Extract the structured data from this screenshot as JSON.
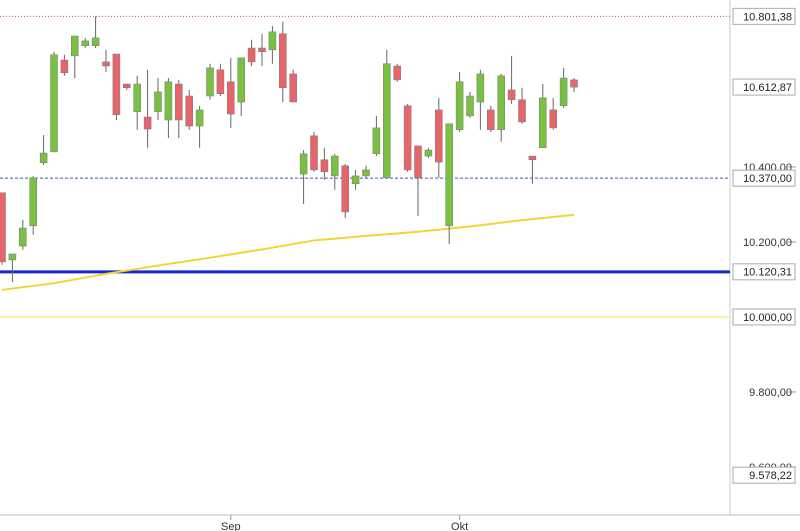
{
  "chart_data": {
    "type": "candlestick",
    "categories": [
      null,
      null,
      null,
      null,
      null,
      null,
      null,
      null,
      null,
      null,
      null,
      null,
      null,
      null,
      null,
      null,
      null,
      null,
      null,
      null,
      null,
      null,
      "Sep",
      null,
      null,
      null,
      null,
      null,
      null,
      null,
      null,
      null,
      null,
      null,
      null,
      null,
      null,
      null,
      null,
      null,
      null,
      null,
      null,
      null,
      "Okt",
      null,
      null,
      null,
      null,
      null,
      null,
      null,
      null,
      null,
      null,
      null
    ],
    "open": [
      10331,
      10152,
      10189,
      10243,
      10411,
      10440,
      10685,
      10696,
      10723,
      10723,
      10680,
      10701,
      10621,
      10547,
      10533,
      10547,
      10525,
      10621,
      10589,
      10509,
      10589,
      10659,
      10627,
      10573,
      10717,
      10717,
      10712,
      10755,
      10648,
      10381,
      10483,
      10419,
      10376,
      10403,
      10355,
      10376,
      10435,
      10371,
      10669,
      10563,
      10456,
      10429,
      10552,
      10243,
      10499,
      10536,
      10573,
      10552,
      10499,
      10605,
      10579,
      10429,
      10451,
      10552,
      10563,
      10632
    ],
    "high": [
      10331,
      10168,
      10259,
      10376,
      10485,
      10707,
      10699,
      10749,
      10744,
      10801.38,
      10712,
      10701,
      10621,
      10643,
      10659,
      10637,
      10637,
      10632,
      10605,
      10563,
      10675,
      10675,
      10691,
      10691,
      10739,
      10755,
      10776,
      10787,
      10659,
      10445,
      10493,
      10451,
      10435,
      10408,
      10392,
      10403,
      10536,
      10712,
      10675,
      10568,
      10456,
      10451,
      10584,
      10515,
      10653,
      10600,
      10659,
      10563,
      10648,
      10696,
      10611,
      10429,
      10621,
      10584,
      10664,
      10637
    ],
    "low": [
      10139,
      10093,
      10179,
      10219,
      10405,
      10440,
      10643,
      10637,
      10717,
      10717,
      10653,
      10525,
      10605,
      10499,
      10451,
      10525,
      10477,
      10477,
      10499,
      10451,
      10579,
      10589,
      10504,
      10536,
      10669,
      10669,
      10675,
      10573,
      10573,
      10301,
      10387,
      10365,
      10339,
      10264,
      10339,
      10371,
      10429,
      10371,
      10627,
      10387,
      10269,
      10424,
      10371,
      10195,
      10493,
      10531,
      10499,
      10493,
      10467,
      10568,
      10515,
      10355,
      10451,
      10499,
      10557,
      10600
    ],
    "close": [
      10147,
      10168,
      10237,
      10371,
      10437,
      10699,
      10651,
      10749,
      10736,
      10744,
      10669,
      10539,
      10611,
      10621,
      10501,
      10600,
      10627,
      10525,
      10509,
      10552,
      10664,
      10595,
      10541,
      10691,
      10680,
      10707,
      10760,
      10611,
      10573,
      10435,
      10392,
      10387,
      10429,
      10280,
      10376,
      10392,
      10504,
      10675,
      10632,
      10392,
      10371,
      10445,
      10413,
      10515,
      10627,
      10589,
      10648,
      10499,
      10643,
      10579,
      10520,
      10419,
      10584,
      10504,
      10637,
      10612.87
    ],
    "colors": {
      "up": "#7ac143",
      "down": "#e5656b"
    },
    "moving_average": {
      "color": "#f2d530",
      "x": [
        0,
        5,
        10,
        15,
        20,
        25,
        30,
        35,
        40,
        45,
        50,
        55
      ],
      "values": [
        10072,
        10090,
        10115,
        10137,
        10158,
        10180,
        10204,
        10216,
        10227,
        10241,
        10258,
        10272
      ]
    },
    "levels": [
      {
        "value": 10801.38,
        "label": "10.801,38",
        "style": "dotted",
        "color": "#c0504d"
      },
      {
        "value": 10612.87,
        "label": "10.612,87",
        "style": "none",
        "color": "#888888"
      },
      {
        "value": 10370,
        "label": "10.370,00",
        "style": "dashed",
        "color": "#3b5fa8"
      },
      {
        "value": 10120.31,
        "label": "10.120,31",
        "style": "thick",
        "color": "#1428d2"
      },
      {
        "value": 10000,
        "label": "10.000,00",
        "style": "solid",
        "color": "#f2e34a"
      },
      {
        "value": 9578.22,
        "label": "9.578,22",
        "style": "none",
        "color": "#888888"
      }
    ],
    "ylim": [
      9472,
      10845
    ],
    "yticks": [
      {
        "value": 9600,
        "label": "9.600,00"
      },
      {
        "value": 9800,
        "label": "9.800,00"
      },
      {
        "value": 10200,
        "label": "10.200,00"
      },
      {
        "value": 10400,
        "label": "10.400,00"
      }
    ]
  }
}
